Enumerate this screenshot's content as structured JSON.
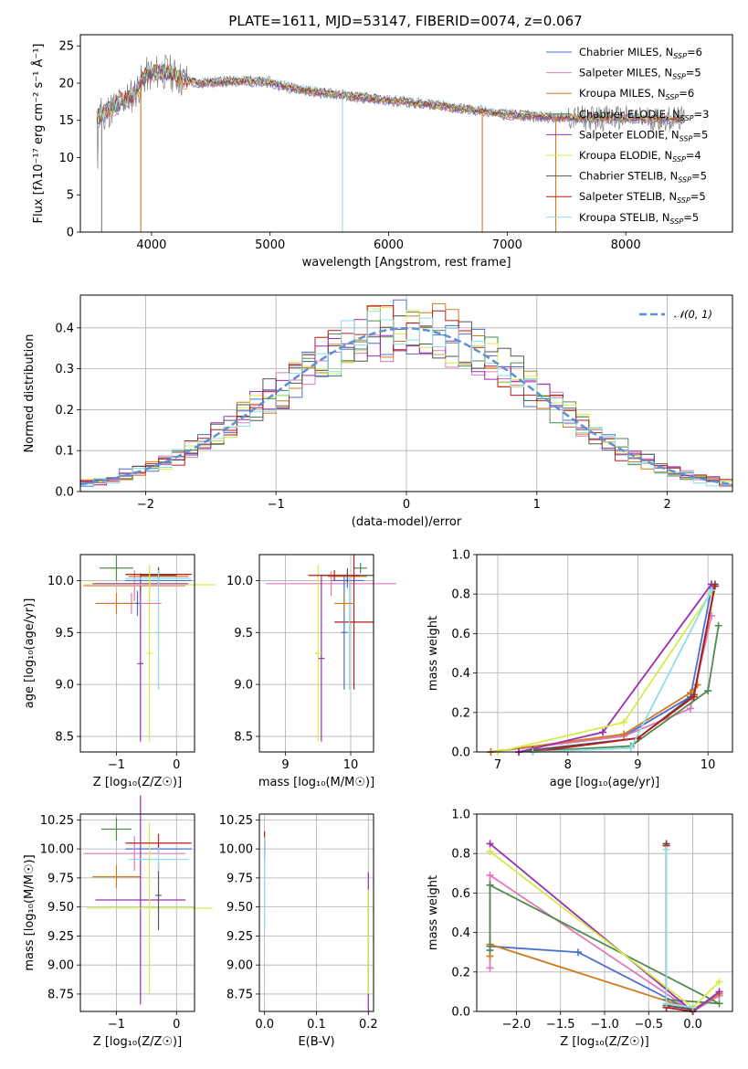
{
  "figure": {
    "title": "PLATE=1611, MJD=53147, FIBERID=0074, z=0.067"
  },
  "models": [
    {
      "name": "Chabrier MILES",
      "nssp": "6",
      "color": "#4a6fd1"
    },
    {
      "name": "Salpeter MILES",
      "nssp": "5",
      "color": "#e07ab8"
    },
    {
      "name": "Kroupa MILES",
      "nssp": "6",
      "color": "#d07a1f"
    },
    {
      "name": "Chabrier ELODIE",
      "nssp": "3",
      "color": "#4f8a4f"
    },
    {
      "name": "Salpeter ELODIE",
      "nssp": "5",
      "color": "#9b2fb0"
    },
    {
      "name": "Kroupa ELODIE",
      "nssp": "4",
      "color": "#d4ec4a"
    },
    {
      "name": "Chabrier STELIB",
      "nssp": "5",
      "color": "#555555"
    },
    {
      "name": "Salpeter STELIB",
      "nssp": "5",
      "color": "#b81c1c"
    },
    {
      "name": "Kroupa STELIB",
      "nssp": "5",
      "color": "#8fdde8"
    }
  ],
  "chart_data": [
    {
      "id": "spectrum",
      "type": "line",
      "xlabel": "wavelength [Angstrom, rest frame]",
      "ylabel": "Flux [fλ10⁻¹⁷ erg cm⁻² s⁻¹ Å⁻¹]",
      "xlim": [
        3400,
        8900
      ],
      "ylim": [
        0,
        26.5
      ],
      "xticks": [
        4000,
        5000,
        6000,
        7000,
        8000
      ],
      "yticks": [
        0,
        5,
        10,
        15,
        20,
        25
      ],
      "grid": false,
      "legend": "top-right",
      "data_color": "#808080",
      "continuum": {
        "x": [
          3550,
          3650,
          3750,
          3850,
          3950,
          4050,
          4150,
          4250,
          4400,
          4600,
          4800,
          5000,
          5200,
          5400,
          5600,
          5800,
          6000,
          6200,
          6400,
          6600,
          6800,
          7000,
          7200,
          7400,
          7600,
          7800,
          8000,
          8200,
          8400,
          8500
        ],
        "y": [
          15.5,
          16.5,
          17.5,
          18.5,
          21,
          21.5,
          21.5,
          20.5,
          20,
          20.2,
          20.3,
          20.1,
          19.3,
          18.8,
          18.4,
          18,
          17.7,
          17.4,
          17,
          16.6,
          16.2,
          15.8,
          15.6,
          15.4,
          15.3,
          15.3,
          15.3,
          15.2,
          15.2,
          15.1
        ]
      },
      "dips": [
        {
          "x": 3580,
          "y": 0,
          "series": "data"
        },
        {
          "x": 3910,
          "y": 0,
          "series": "Kroupa MILES"
        },
        {
          "x": 5610,
          "y": 0,
          "series": "Kroupa STELIB"
        },
        {
          "x": 6790,
          "y": 0,
          "series": "Kroupa MILES"
        },
        {
          "x": 7410,
          "y": 0,
          "series": "Kroupa MILES"
        }
      ]
    },
    {
      "id": "residual-hist",
      "type": "line",
      "xlabel": "(data-model)/error",
      "ylabel": "Normed distribution",
      "xlim": [
        -2.5,
        2.5
      ],
      "ylim": [
        0,
        0.48
      ],
      "xticks": [
        -2,
        -1,
        0,
        1,
        2
      ],
      "yticks": [
        0.0,
        0.1,
        0.2,
        0.3,
        0.4
      ],
      "grid": true,
      "legend": "top-right",
      "gauss": {
        "label": "𝒩(0, 1)",
        "mu": 0,
        "sigma": 1,
        "color": "#5b8fd6"
      },
      "bin_width": 0.1,
      "bin_start": -2.5
    },
    {
      "id": "age-vs-Z",
      "type": "scatter",
      "xlabel": "Z [log₁₀(Z/Z☉)]",
      "ylabel": "age  [log₁₀(age/yr)]",
      "xlim": [
        -1.6,
        0.3
      ],
      "ylim": [
        8.35,
        10.25
      ],
      "xticks": [
        -1,
        0
      ],
      "yticks": [
        8.5,
        9.0,
        9.5,
        10.0
      ],
      "grid": true,
      "points": [
        {
          "series": "Chabrier MILES",
          "x": -0.3,
          "xerr": 0.55,
          "y": 10.0,
          "yerr": 0.07
        },
        {
          "series": "Salpeter MILES",
          "x": -0.7,
          "xerr": 0.85,
          "y": 9.95,
          "yerr": 0.15
        },
        {
          "series": "Kroupa MILES",
          "x": -0.3,
          "xerr": 0.5,
          "y": 10.04,
          "yerr": 0.06
        },
        {
          "series": "Chabrier ELODIE",
          "x": -1.0,
          "xerr": 0.28,
          "y": 10.12,
          "yerr": 0.12
        },
        {
          "series": "Salpeter ELODIE",
          "x": -0.6,
          "xerr": 0.8,
          "y": 9.97,
          "yerr": 0.1
        },
        {
          "series": "Kroupa ELODIE",
          "x": -0.45,
          "xerr": 1.1,
          "y": 9.96,
          "yerr": 0.18
        },
        {
          "series": "Chabrier STELIB",
          "x": -0.3,
          "xerr": 0.3,
          "y": 10.05,
          "yerr": 0.08
        },
        {
          "series": "Salpeter STELIB",
          "x": -0.3,
          "xerr": 0.55,
          "y": 10.06,
          "yerr": 0.05
        },
        {
          "series": "Kroupa STELIB",
          "x": -0.3,
          "xerr": 0.55,
          "y": 10.02,
          "yerr": 0.08
        },
        {
          "series": "Salpeter ELODIE",
          "x": -0.6,
          "xerr": 0.05,
          "y": 9.2,
          "yerr": 0.75
        },
        {
          "series": "Kroupa ELODIE",
          "x": -0.45,
          "xerr": 0.05,
          "y": 9.3,
          "yerr": 0.85
        },
        {
          "series": "Kroupa STELIB",
          "x": -0.3,
          "xerr": 0.05,
          "y": 9.5,
          "yerr": 0.55
        },
        {
          "series": "Salpeter MILES",
          "x": -0.75,
          "xerr": 0.5,
          "y": 9.78,
          "yerr": 0.1
        },
        {
          "series": "Kroupa MILES",
          "x": -1.0,
          "xerr": 0.35,
          "y": 9.78,
          "yerr": 0.1
        },
        {
          "series": "Chabrier MILES",
          "x": -0.65,
          "xerr": 0.04,
          "y": 9.78,
          "yerr": 0.12
        }
      ]
    },
    {
      "id": "age-vs-mass",
      "type": "scatter",
      "xlabel": "mass [log₁₀(M/M☉)]",
      "ylabel": "",
      "xlim": [
        8.6,
        10.35
      ],
      "ylim": [
        8.35,
        10.25
      ],
      "xticks": [
        9,
        10
      ],
      "yticks": [
        8.5,
        9.0,
        9.5,
        10.0
      ],
      "grid": true,
      "points": [
        {
          "series": "Chabrier MILES",
          "x": 9.95,
          "xerr": 0.25,
          "y": 10.0,
          "yerr": 0.07
        },
        {
          "series": "Salpeter MILES",
          "x": 9.7,
          "xerr": 1.0,
          "y": 9.97,
          "yerr": 0.12
        },
        {
          "series": "Kroupa MILES",
          "x": 9.95,
          "xerr": 0.3,
          "y": 10.04,
          "yerr": 0.06
        },
        {
          "series": "Chabrier ELODIE",
          "x": 10.15,
          "xerr": 0.1,
          "y": 10.12,
          "yerr": 0.05
        },
        {
          "series": "Salpeter ELODIE",
          "x": 9.55,
          "xerr": 0.05,
          "y": 9.25,
          "yerr": 0.8
        },
        {
          "series": "Kroupa ELODIE",
          "x": 9.5,
          "xerr": 0.05,
          "y": 9.3,
          "yerr": 0.85
        },
        {
          "series": "Chabrier STELIB",
          "x": 9.95,
          "xerr": 0.4,
          "y": 10.05,
          "yerr": 0.07
        },
        {
          "series": "Salpeter STELIB",
          "x": 10.05,
          "xerr": 0.3,
          "y": 9.6,
          "yerr": 0.65
        },
        {
          "series": "Kroupa STELIB",
          "x": 9.98,
          "xerr": 0.05,
          "y": 9.5,
          "yerr": 0.55
        },
        {
          "series": "Chabrier MILES",
          "x": 9.9,
          "xerr": 0.05,
          "y": 9.5,
          "yerr": 0.55
        },
        {
          "series": "Kroupa MILES",
          "x": 9.9,
          "xerr": 0.15,
          "y": 9.78,
          "yerr": 0.08
        },
        {
          "series": "Salpeter STELIB",
          "x": 9.75,
          "xerr": 0.4,
          "y": 10.05,
          "yerr": 0.05
        }
      ]
    },
    {
      "id": "weight-vs-age",
      "type": "line",
      "xlabel": "age  [log₁₀(age/yr)]",
      "ylabel": "mass weight",
      "xlim": [
        6.7,
        10.35
      ],
      "ylim": [
        0,
        1.0
      ],
      "xticks": [
        7,
        8,
        9,
        10
      ],
      "yticks": [
        0.0,
        0.2,
        0.4,
        0.6,
        0.8,
        1.0
      ],
      "grid": true,
      "series": [
        {
          "name": "Chabrier MILES",
          "x": [
            6.9,
            8.8,
            9.75,
            10.05
          ],
          "y": [
            0.0,
            0.08,
            0.28,
            0.83
          ]
        },
        {
          "name": "Salpeter MILES",
          "x": [
            6.9,
            8.8,
            9.75,
            10.05
          ],
          "y": [
            0.0,
            0.08,
            0.22,
            0.69
          ]
        },
        {
          "name": "Kroupa MILES",
          "x": [
            6.9,
            8.8,
            9.75,
            9.85
          ],
          "y": [
            0.0,
            0.09,
            0.3,
            0.34
          ]
        },
        {
          "name": "Chabrier ELODIE",
          "x": [
            7.3,
            8.9,
            10.0,
            10.15
          ],
          "y": [
            0.0,
            0.03,
            0.31,
            0.64
          ]
        },
        {
          "name": "Salpeter ELODIE",
          "x": [
            7.3,
            8.5,
            10.05
          ],
          "y": [
            0.0,
            0.1,
            0.85
          ]
        },
        {
          "name": "Kroupa ELODIE",
          "x": [
            7.0,
            8.8,
            10.05
          ],
          "y": [
            0.0,
            0.15,
            0.81
          ]
        },
        {
          "name": "Chabrier STELIB",
          "x": [
            7.5,
            9.0,
            9.8,
            10.1
          ],
          "y": [
            0.01,
            0.07,
            0.29,
            0.85
          ]
        },
        {
          "name": "Salpeter STELIB",
          "x": [
            7.5,
            9.0,
            9.8,
            10.1
          ],
          "y": [
            0.0,
            0.07,
            0.28,
            0.84
          ]
        },
        {
          "name": "Kroupa STELIB",
          "x": [
            7.5,
            8.9,
            10.05
          ],
          "y": [
            0.0,
            0.02,
            0.82
          ]
        }
      ]
    },
    {
      "id": "mass-vs-Z",
      "type": "scatter",
      "xlabel": "Z [log₁₀(Z/Z☉)]",
      "ylabel": "mass [log₁₀(M/M☉)]",
      "xlim": [
        -1.6,
        0.3
      ],
      "ylim": [
        8.6,
        10.3
      ],
      "xticks": [
        -1,
        0
      ],
      "yticks": [
        8.75,
        9.0,
        9.25,
        9.5,
        9.75,
        10.0,
        10.25
      ],
      "grid": true,
      "points": [
        {
          "series": "Chabrier MILES",
          "x": -0.3,
          "xerr": 0.55,
          "y": 10.0,
          "yerr": 0.05
        },
        {
          "series": "Salpeter MILES",
          "x": -0.7,
          "xerr": 0.85,
          "y": 9.96,
          "yerr": 0.15
        },
        {
          "series": "Kroupa MILES",
          "x": -1.0,
          "xerr": 0.4,
          "y": 9.76,
          "yerr": 0.1
        },
        {
          "series": "Chabrier ELODIE",
          "x": -1.0,
          "xerr": 0.25,
          "y": 10.17,
          "yerr": 0.1
        },
        {
          "series": "Salpeter ELODIE",
          "x": -0.6,
          "xerr": 0.75,
          "y": 9.56,
          "yerr": 0.9
        },
        {
          "series": "Kroupa ELODIE",
          "x": -0.45,
          "xerr": 1.05,
          "y": 9.49,
          "yerr": 0.74
        },
        {
          "series": "Chabrier STELIB",
          "x": -0.3,
          "xerr": 0.05,
          "y": 9.6,
          "yerr": 0.3
        },
        {
          "series": "Salpeter STELIB",
          "x": -0.3,
          "xerr": 0.55,
          "y": 10.05,
          "yerr": 0.08
        },
        {
          "series": "Kroupa STELIB",
          "x": -0.3,
          "xerr": 0.5,
          "y": 9.91,
          "yerr": 0.1
        }
      ]
    },
    {
      "id": "mass-vs-ebv",
      "type": "scatter",
      "xlabel": "E(B-V)",
      "ylabel": "",
      "xlim": [
        -0.01,
        0.21
      ],
      "ylim": [
        8.6,
        10.3
      ],
      "xticks": [
        0.0,
        0.1,
        0.2
      ],
      "yticks": [
        8.75,
        9.0,
        9.25,
        9.5,
        9.75,
        10.0,
        10.25
      ],
      "grid": true,
      "points": [
        {
          "series": "Chabrier MILES",
          "x": 0.0,
          "y": 10.0,
          "yerr": 0.1
        },
        {
          "series": "Salpeter STELIB",
          "x": 0.0,
          "y": 10.05,
          "yerr": 0.1
        },
        {
          "series": "Kroupa STELIB",
          "x": 0.0,
          "y": 9.7,
          "yerr": 0.4
        },
        {
          "series": "Salpeter ELODIE",
          "x": 0.2,
          "y": 9.2,
          "yerr": 0.6
        },
        {
          "series": "Kroupa ELODIE",
          "x": 0.2,
          "y": 9.2,
          "yerr": 0.45
        }
      ]
    },
    {
      "id": "weight-vs-Z",
      "type": "line",
      "xlabel": "Z [log₁₀(Z/Z☉)]",
      "ylabel": "mass weight",
      "xlim": [
        -2.45,
        0.45
      ],
      "ylim": [
        0,
        1.0
      ],
      "xticks": [
        -2.0,
        -1.5,
        -1.0,
        -0.5,
        0.0
      ],
      "yticks": [
        0.0,
        0.2,
        0.4,
        0.6,
        0.8,
        1.0
      ],
      "grid": true,
      "series": [
        {
          "name": "Chabrier MILES",
          "x": [
            -2.3,
            -1.3,
            0.0,
            0.3
          ],
          "y": [
            0.33,
            0.3,
            0.0,
            0.08
          ]
        },
        {
          "name": "Salpeter MILES",
          "x": [
            -2.3,
            -2.3,
            0.0,
            0.3
          ],
          "y": [
            0.22,
            0.69,
            0.0,
            0.08
          ]
        },
        {
          "name": "Kroupa MILES",
          "x": [
            -2.3,
            -2.3,
            0.0,
            0.3
          ],
          "y": [
            0.28,
            0.34,
            0.01,
            0.09
          ]
        },
        {
          "name": "Chabrier ELODIE",
          "x": [
            -2.3,
            -2.3,
            0.3,
            -0.3
          ],
          "y": [
            0.31,
            0.64,
            0.04,
            0.06
          ]
        },
        {
          "name": "Salpeter ELODIE",
          "x": [
            -2.3,
            0.0,
            0.3
          ],
          "y": [
            0.85,
            0.0,
            0.1
          ]
        },
        {
          "name": "Kroupa ELODIE",
          "x": [
            -2.3,
            0.0,
            0.3
          ],
          "y": [
            0.81,
            0.02,
            0.15
          ]
        },
        {
          "name": "Chabrier STELIB",
          "x": [
            -0.3,
            -0.3,
            0.0
          ],
          "y": [
            0.85,
            0.03,
            0.01
          ]
        },
        {
          "name": "Salpeter STELIB",
          "x": [
            -0.3,
            -0.3,
            0.0
          ],
          "y": [
            0.84,
            0.02,
            0.0
          ]
        },
        {
          "name": "Kroupa STELIB",
          "x": [
            -0.3,
            -0.3,
            0.0
          ],
          "y": [
            0.82,
            0.04,
            0.02
          ]
        }
      ]
    }
  ]
}
